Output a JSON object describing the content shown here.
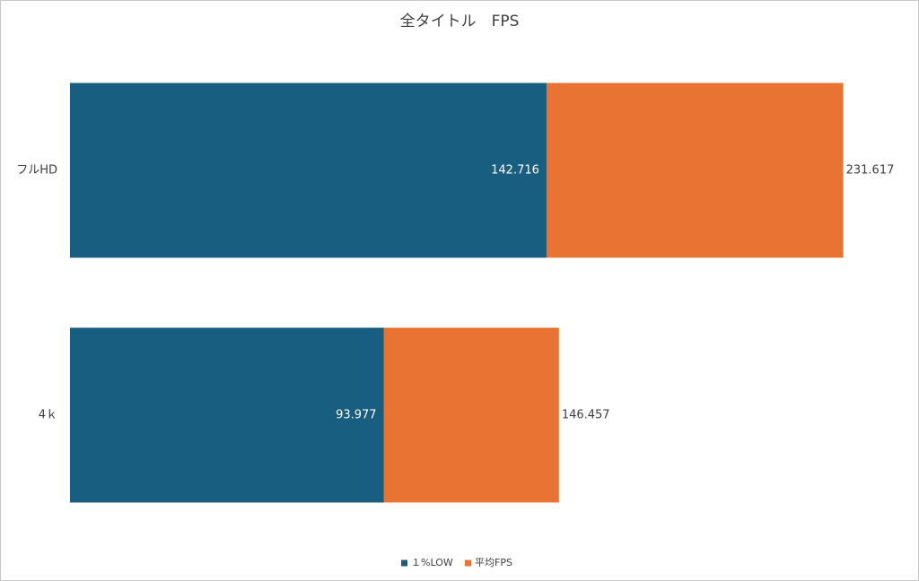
{
  "chart_data": {
    "type": "overlap-barh",
    "title": "全タイトル　FPS",
    "categories": [
      "フルHD",
      "4ｋ"
    ],
    "series": [
      {
        "name": "１%LOW",
        "color": "#175e80",
        "values": [
          142.716,
          93.977
        ]
      },
      {
        "name": "平均FPS",
        "color": "#e97332",
        "values": [
          231.617,
          146.457
        ]
      }
    ],
    "xlim": [
      0,
      250
    ],
    "legend": "bottom"
  }
}
